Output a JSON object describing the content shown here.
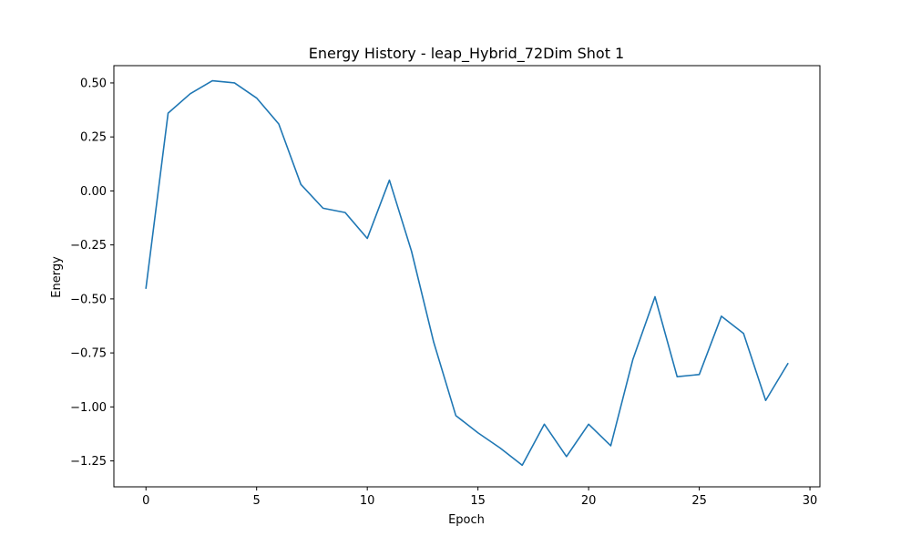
{
  "chart_data": {
    "type": "line",
    "title": "Energy History - leap_Hybrid_72Dim Shot 1",
    "xlabel": "Epoch",
    "ylabel": "Energy",
    "xlim": [
      -1.45,
      30.45
    ],
    "ylim": [
      -1.37,
      0.58
    ],
    "xticks": [
      0,
      5,
      10,
      15,
      20,
      25,
      30
    ],
    "xtick_labels": [
      "0",
      "5",
      "10",
      "15",
      "20",
      "25",
      "30"
    ],
    "yticks": [
      0.5,
      0.25,
      0.0,
      -0.25,
      -0.5,
      -0.75,
      -1.0,
      -1.25
    ],
    "ytick_labels": [
      "0.50",
      "0.25",
      "0.00",
      "−0.25",
      "−0.50",
      "−0.75",
      "−1.00",
      "−1.25"
    ],
    "grid": false,
    "series": [
      {
        "color": "#1f77b4",
        "x": [
          0,
          1,
          2,
          3,
          4,
          5,
          6,
          7,
          8,
          9,
          10,
          11,
          12,
          13,
          14,
          15,
          16,
          17,
          18,
          19,
          20,
          21,
          22,
          23,
          24,
          25,
          26,
          27,
          28,
          29
        ],
        "y": [
          -0.45,
          0.36,
          0.45,
          0.51,
          0.5,
          0.43,
          0.31,
          0.03,
          -0.08,
          -0.1,
          -0.22,
          0.05,
          -0.28,
          -0.7,
          -1.04,
          -1.12,
          -1.19,
          -1.27,
          -1.08,
          -1.23,
          -1.08,
          -1.18,
          -0.78,
          -0.49,
          -0.86,
          -0.85,
          -0.58,
          -0.66,
          -0.97,
          -0.8
        ]
      }
    ]
  }
}
